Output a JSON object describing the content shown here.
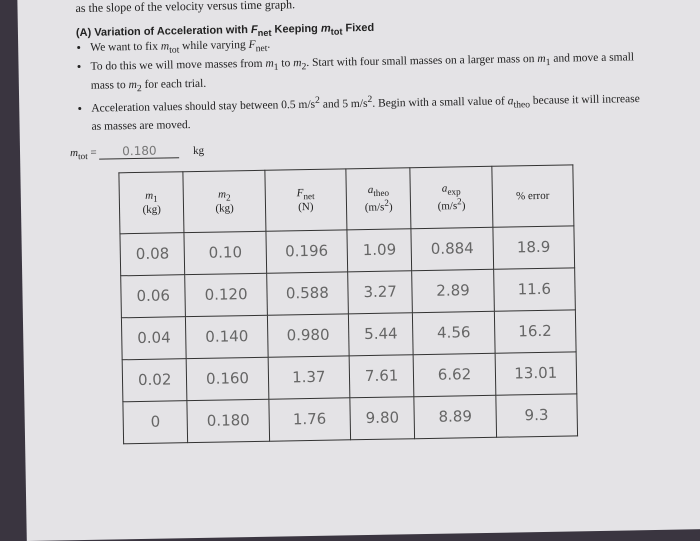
{
  "header": {
    "intro": "as the slope of the velocity versus time graph.",
    "title": [
      {
        "text": "(A) Variation of Acceleration with "
      },
      {
        "text": "F",
        "style": "i"
      },
      {
        "text": "net",
        "style": "sub"
      },
      {
        "text": " Keeping "
      },
      {
        "text": "m",
        "style": "i"
      },
      {
        "text": "tot",
        "style": "sub"
      },
      {
        "text": " Fixed"
      }
    ]
  },
  "bullets": [
    [
      {
        "text": "We want to fix "
      },
      {
        "text": "m",
        "style": "i"
      },
      {
        "text": "tot",
        "style": "sub"
      },
      {
        "text": " while varying "
      },
      {
        "text": "F",
        "style": "i"
      },
      {
        "text": "net",
        "style": "sub"
      },
      {
        "text": "."
      }
    ],
    [
      {
        "text": "To do this we will move masses from "
      },
      {
        "text": "m",
        "style": "i"
      },
      {
        "text": "1",
        "style": "sub"
      },
      {
        "text": " to "
      },
      {
        "text": "m",
        "style": "i"
      },
      {
        "text": "2",
        "style": "sub"
      },
      {
        "text": ".  Start with four small masses on a larger mass on "
      },
      {
        "text": "m",
        "style": "i"
      },
      {
        "text": "1",
        "style": "sub"
      },
      {
        "text": " and move a small mass to "
      },
      {
        "text": "m",
        "style": "i"
      },
      {
        "text": "2",
        "style": "sub"
      },
      {
        "text": " for each trial."
      }
    ],
    [
      {
        "text": "Acceleration values should stay between 0.5 m/s"
      },
      {
        "text": "2",
        "style": "sup"
      },
      {
        "text": " and 5 m/s"
      },
      {
        "text": "2",
        "style": "sup"
      },
      {
        "text": ".  Begin with a small value of "
      },
      {
        "text": "a",
        "style": "i"
      },
      {
        "text": "theo",
        "style": "sub"
      },
      {
        "text": " because it will increase as masses are moved."
      }
    ]
  ],
  "mass": {
    "label": [
      {
        "text": "m",
        "style": "i"
      },
      {
        "text": "tot",
        "style": "sub"
      },
      {
        "text": " ="
      }
    ],
    "value": "0.180",
    "unit": "kg"
  },
  "table": {
    "headers": [
      [
        {
          "text": "m",
          "style": "i"
        },
        {
          "text": "1",
          "style": "sub"
        },
        {
          "text": "(kg)",
          "style": "br"
        }
      ],
      [
        {
          "text": "m",
          "style": "i"
        },
        {
          "text": "2",
          "style": "sub"
        },
        {
          "text": "(kg)",
          "style": "br"
        }
      ],
      [
        {
          "text": "F",
          "style": "i"
        },
        {
          "text": "net",
          "style": "sub"
        },
        {
          "text": "(N)",
          "style": "br"
        }
      ],
      [
        {
          "text": "a",
          "style": "i"
        },
        {
          "text": "theo",
          "style": "sub"
        },
        {
          "text": "(m/s",
          "style": "br"
        },
        {
          "text": "2",
          "style": "sup"
        },
        {
          "text": ")"
        }
      ],
      [
        {
          "text": "a",
          "style": "i"
        },
        {
          "text": "exp",
          "style": "sub"
        },
        {
          "text": "(m/s",
          "style": "br"
        },
        {
          "text": "2",
          "style": "sup"
        },
        {
          "text": ")"
        }
      ],
      [
        {
          "text": "% error"
        }
      ]
    ],
    "rows": [
      [
        "0.08",
        "0.10",
        "0.196",
        "1.09",
        "0.884",
        "18.9"
      ],
      [
        "0.06",
        "0.120",
        "0.588",
        "3.27",
        "2.89",
        "11.6"
      ],
      [
        "0.04",
        "0.140",
        "0.980",
        "5.44",
        "4.56",
        "16.2"
      ],
      [
        "0.02",
        "0.160",
        "1.37",
        "7.61",
        "6.62",
        "13.01"
      ],
      [
        "0",
        "0.180",
        "1.76",
        "9.80",
        "8.89",
        "9.3"
      ]
    ]
  }
}
